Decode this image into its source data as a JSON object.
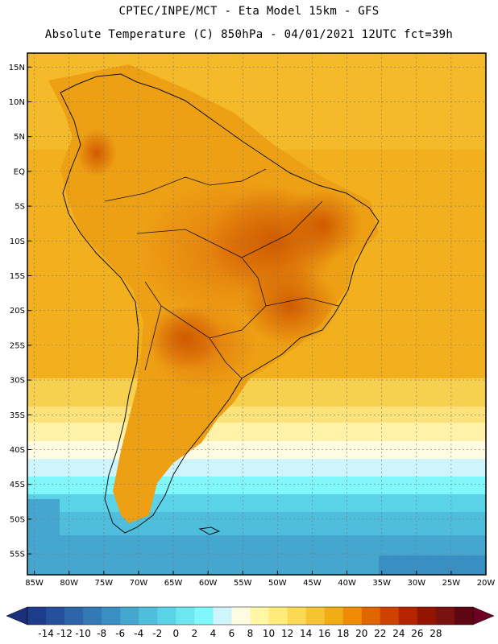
{
  "header": {
    "line1": "CPTEC/INPE/MCT -  Eta Model 15km - GFS",
    "line2": "Absolute Temperature (C) 850hPa - 04/01/2021 12UTC fct=39h"
  },
  "map": {
    "lon_range": [
      -86,
      -20
    ],
    "lat_range": [
      -58,
      17
    ],
    "lat_labels": [
      "15N",
      "10N",
      "5N",
      "EQ",
      "5S",
      "10S",
      "15S",
      "20S",
      "25S",
      "30S",
      "35S",
      "40S",
      "45S",
      "50S",
      "55S"
    ],
    "lat_values": [
      15,
      10,
      5,
      0,
      -5,
      -10,
      -15,
      -20,
      -25,
      -30,
      -35,
      -40,
      -45,
      -50,
      -55
    ],
    "lon_labels": [
      "85W",
      "80W",
      "75W",
      "70W",
      "65W",
      "60W",
      "55W",
      "50W",
      "45W",
      "40W",
      "35W",
      "30W",
      "25W",
      "20W"
    ],
    "lon_values": [
      -85,
      -80,
      -75,
      -70,
      -65,
      -60,
      -55,
      -50,
      -45,
      -40,
      -35,
      -30,
      -25,
      -20
    ]
  },
  "colorbar": {
    "labels": [
      "-14",
      "-12",
      "-10",
      "-8",
      "-6",
      "-4",
      "-2",
      "0",
      "2",
      "4",
      "6",
      "8",
      "10",
      "12",
      "14",
      "16",
      "18",
      "20",
      "22",
      "24",
      "26",
      "28"
    ],
    "colors": [
      "#1e3c8c",
      "#27509c",
      "#2d64aa",
      "#3279b6",
      "#3a8fc2",
      "#45a6cf",
      "#4fbddc",
      "#5ad3e8",
      "#6ee6f0",
      "#7ff7fb",
      "#cdf5fb",
      "#fffbe3",
      "#fff6a6",
      "#ffec7a",
      "#fbd955",
      "#f6c432",
      "#f2ac14",
      "#f08c04",
      "#e06600",
      "#cc4200",
      "#b22500",
      "#931400",
      "#781110",
      "#5e0712"
    ],
    "end_low": "#1b2f7a",
    "end_high": "#6b0020"
  }
}
